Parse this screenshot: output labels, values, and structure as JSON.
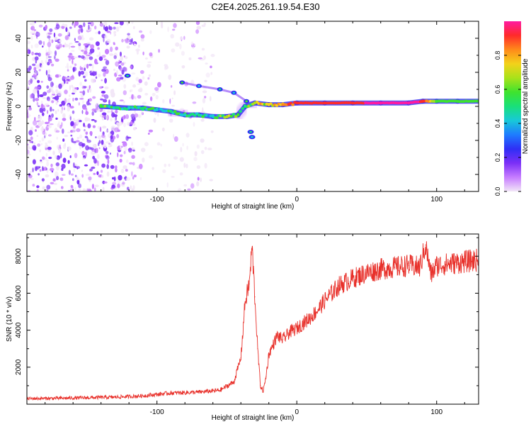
{
  "title": "C2E4.2025.261.19.54.E30",
  "colors": {
    "snr_line": "#e8302a",
    "axis": "#000000",
    "colormap": [
      "#f2e6f7",
      "#c77dff",
      "#7b2ff7",
      "#2f2ff5",
      "#1e7bff",
      "#18c9d8",
      "#19e07a",
      "#3ee32e",
      "#a8e21a",
      "#f3d21a",
      "#ff8a1a",
      "#ff2a2a",
      "#ff1aa0"
    ]
  },
  "chart_data": [
    {
      "type": "heatmap",
      "name": "spectrogram",
      "xlabel": "Height of straight line (km)",
      "ylabel": "Frequency (Hz)",
      "xlim": [
        -193,
        130
      ],
      "ylim": [
        -50,
        50
      ],
      "xticks": [
        -100,
        0,
        100
      ],
      "xtick_labels": [
        "-100",
        "0",
        "100"
      ],
      "yticks": [
        -40,
        -20,
        0,
        20,
        40
      ],
      "ytick_labels": [
        "-40",
        "-20",
        "0",
        "20",
        "40"
      ],
      "colorbar": {
        "label": "Normalized spectral amplitude",
        "range": [
          0,
          1
        ],
        "ticks": [
          0,
          0.2,
          0.4,
          0.6,
          0.8
        ],
        "tick_labels": [
          "0.0",
          "0.2",
          "0.4",
          "0.6",
          "0.8"
        ]
      },
      "ridge": {
        "description": "dominant spectral line",
        "points": [
          {
            "x": -140,
            "freq": 0,
            "amp": 0.55
          },
          {
            "x": -120,
            "freq": -1,
            "amp": 0.45
          },
          {
            "x": -110,
            "freq": -1,
            "amp": 0.5
          },
          {
            "x": -100,
            "freq": -2,
            "amp": 0.45
          },
          {
            "x": -90,
            "freq": -3,
            "amp": 0.5
          },
          {
            "x": -80,
            "freq": -5,
            "amp": 0.45
          },
          {
            "x": -70,
            "freq": -5,
            "amp": 0.5
          },
          {
            "x": -60,
            "freq": -6,
            "amp": 0.45
          },
          {
            "x": -50,
            "freq": -6,
            "amp": 0.7
          },
          {
            "x": -42,
            "freq": -5,
            "amp": 0.55
          },
          {
            "x": -37,
            "freq": 0,
            "amp": 0.5
          },
          {
            "x": -30,
            "freq": 2,
            "amp": 0.7
          },
          {
            "x": -20,
            "freq": 1,
            "amp": 0.75
          },
          {
            "x": -10,
            "freq": 1,
            "amp": 0.8
          },
          {
            "x": 0,
            "freq": 2,
            "amp": 0.9
          },
          {
            "x": 20,
            "freq": 2,
            "amp": 0.92
          },
          {
            "x": 40,
            "freq": 2,
            "amp": 0.95
          },
          {
            "x": 60,
            "freq": 2,
            "amp": 0.97
          },
          {
            "x": 80,
            "freq": 2,
            "amp": 0.98
          },
          {
            "x": 90,
            "freq": 3,
            "amp": 0.95
          },
          {
            "x": 100,
            "freq": 3,
            "amp": 0.6
          },
          {
            "x": 115,
            "freq": 3,
            "amp": 0.55
          },
          {
            "x": 130,
            "freq": 3,
            "amp": 0.55
          }
        ]
      },
      "secondary_branch": [
        {
          "x": -82,
          "freq": 14,
          "amp": 0.45
        },
        {
          "x": -70,
          "freq": 12,
          "amp": 0.3
        },
        {
          "x": -55,
          "freq": 10,
          "amp": 0.4
        },
        {
          "x": -45,
          "freq": 8,
          "amp": 0.35
        },
        {
          "x": -36,
          "freq": 3,
          "amp": 0.45
        }
      ],
      "isolated_spots": [
        {
          "x": -121,
          "freq": 18,
          "amp": 0.35
        },
        {
          "x": -33,
          "freq": -15,
          "amp": 0.35
        },
        {
          "x": -32,
          "freq": -18,
          "amp": 0.3
        }
      ],
      "noise_region": {
        "x_from": -193,
        "x_to": -60,
        "dense_until": -115
      }
    },
    {
      "type": "line",
      "name": "snr",
      "xlabel": "Height of straight line (km)",
      "ylabel": "SNR (10 * v/v)",
      "xlim": [
        -193,
        130
      ],
      "ylim": [
        0,
        9200
      ],
      "xticks": [
        -100,
        0,
        100
      ],
      "xtick_labels": [
        "-100",
        "0",
        "100"
      ],
      "yticks": [
        2000,
        4000,
        6000,
        8000
      ],
      "ytick_labels": [
        "2000",
        "4000",
        "6000",
        "8000"
      ],
      "series": [
        {
          "name": "SNR",
          "x": [
            -193,
            -170,
            -150,
            -130,
            -110,
            -90,
            -70,
            -55,
            -45,
            -40,
            -37,
            -34,
            -32,
            -30,
            -28,
            -26,
            -24,
            -22,
            -20,
            -17,
            -14,
            -10,
            -5,
            0,
            5,
            10,
            15,
            20,
            30,
            40,
            50,
            60,
            70,
            80,
            88,
            92,
            94,
            96,
            100,
            110,
            120,
            130
          ],
          "y": [
            300,
            320,
            350,
            380,
            450,
            600,
            650,
            750,
            1200,
            2500,
            5500,
            6500,
            8500,
            5800,
            3000,
            1000,
            700,
            1500,
            2700,
            3200,
            3700,
            3500,
            3900,
            4100,
            4400,
            4700,
            5100,
            5600,
            6400,
            6800,
            7100,
            7300,
            7400,
            7500,
            7400,
            8600,
            7800,
            7000,
            7500,
            7600,
            7700,
            7800
          ]
        }
      ],
      "noise_amplitude": 180
    }
  ]
}
